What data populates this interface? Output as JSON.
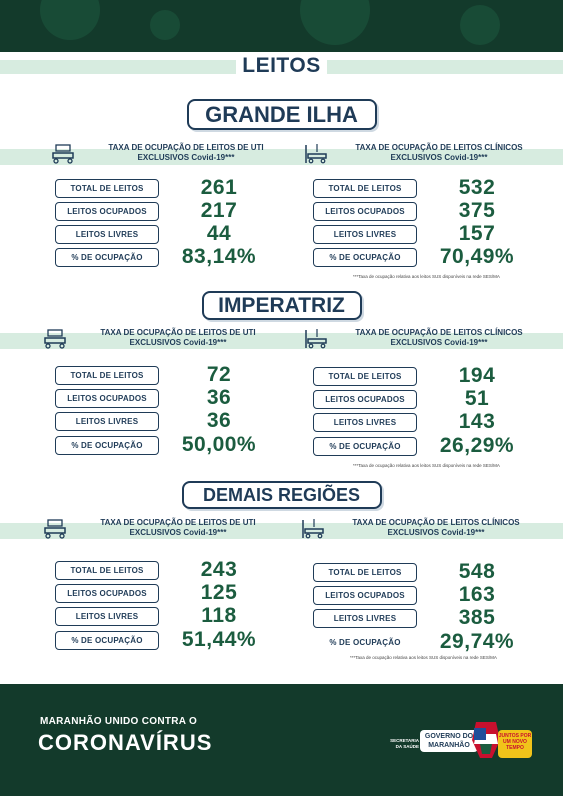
{
  "header": {
    "title": "LEITOS"
  },
  "uti_header": "TAXA DE OCUPAÇÃO DE LEITOS DE UTI EXCLUSIVOS Covid-19***",
  "clin_header": "TAXA DE OCUPAÇÃO DE LEITOS CLÍNICOS EXCLUSIVOS Covid-19***",
  "labels": {
    "total": "TOTAL DE LEITOS",
    "ocupados": "LEITOS OCUPADOS",
    "livres": "LEITOS LIVRES",
    "percent": "% DE OCUPAÇÃO"
  },
  "note": "***Taxa de ocupação relativa aos leitos SUS disponíveis na rede SES/MA",
  "regions": [
    {
      "name": "GRANDE ILHA",
      "uti": {
        "total": "261",
        "ocupados": "217",
        "livres": "44",
        "percent": "83,14%"
      },
      "clinicos": {
        "total": "532",
        "ocupados": "375",
        "livres": "157",
        "percent": "70,49%"
      }
    },
    {
      "name": "IMPERATRIZ",
      "uti": {
        "total": "72",
        "ocupados": "36",
        "livres": "36",
        "percent": "50,00%"
      },
      "clinicos": {
        "total": "194",
        "ocupados": "51",
        "livres": "143",
        "percent": "26,29%"
      }
    },
    {
      "name": "DEMAIS REGIÕES",
      "uti": {
        "total": "243",
        "ocupados": "125",
        "livres": "118",
        "percent": "51,44%"
      },
      "clinicos": {
        "total": "548",
        "ocupados": "163",
        "livres": "385",
        "percent": "29,74%"
      }
    }
  ],
  "footer": {
    "line1": "MARANHÃO UNIDO CONTRA O",
    "line2": "CORONAVÍRUS",
    "secretaria": "SECRETARIA DA SAÚDE",
    "governo": "GOVERNO DO MARANHÃO",
    "slogan": "JUNTOS POR UM NOVO TEMPO"
  },
  "colors": {
    "dark_green": "#133a2b",
    "navy": "#1f3b57",
    "value_green": "#1b5c3f",
    "mint": "#d7ece0"
  }
}
